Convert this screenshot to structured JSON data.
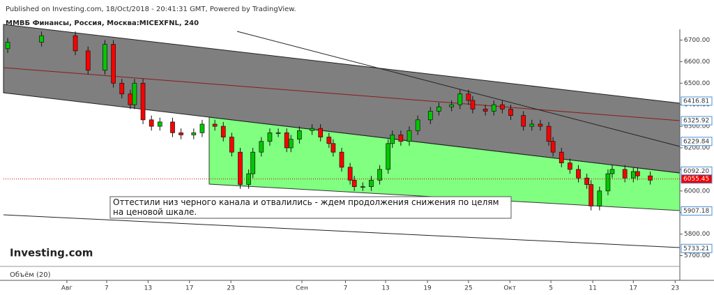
{
  "header": "Published on Investing.com, 18/Oct/2018 - 20:41:31 GMT, Powered by TradingView.",
  "chart_data": {
    "type": "candlestick",
    "title": "ММВБ Финансы, Россия, Москва:MICEXFNL, 240",
    "annotation": "Оттестили низ черного канала и отвалились - ждем продолжения снижения по целям на ценовой шкале.",
    "logo": "Investing.com",
    "volume_label": "Объём (20)",
    "up_color": "#00c800",
    "down_color": "#ff0000",
    "x": [
      1,
      9,
      17,
      20,
      24,
      26,
      28,
      30,
      31,
      33,
      35,
      37,
      40,
      42,
      45,
      47,
      50,
      52,
      54,
      56,
      58,
      59,
      61,
      63,
      65,
      67,
      68,
      70,
      73,
      75,
      77,
      78,
      80,
      82,
      83,
      85,
      87,
      89,
      91,
      92,
      94,
      96,
      98,
      101,
      103,
      106,
      108,
      110,
      111,
      114,
      116,
      118,
      120,
      123,
      125,
      127,
      129,
      130,
      132,
      134,
      136,
      138,
      139,
      141,
      143,
      144,
      147,
      149,
      150,
      153
    ],
    "open": [
      6660,
      6690,
      6720,
      6650,
      6560,
      6680,
      6500,
      6450,
      6400,
      6500,
      6330,
      6300,
      6320,
      6270,
      6260,
      6270,
      6310,
      6300,
      6250,
      6180,
      6030,
      6080,
      6180,
      6230,
      6270,
      6270,
      6200,
      6240,
      6280,
      6290,
      6250,
      6220,
      6180,
      6110,
      6050,
      6020,
      6020,
      6050,
      6100,
      6220,
      6260,
      6230,
      6280,
      6330,
      6370,
      6390,
      6400,
      6450,
      6420,
      6380,
      6370,
      6400,
      6380,
      6350,
      6300,
      6310,
      6300,
      6230,
      6180,
      6130,
      6100,
      6060,
      6030,
      5930,
      6000,
      6080,
      6100,
      6060,
      6090,
      6070
    ],
    "high": [
      6710,
      6740,
      6740,
      6670,
      6700,
      6700,
      6520,
      6470,
      6520,
      6520,
      6350,
      6340,
      6340,
      6290,
      6290,
      6330,
      6330,
      6320,
      6270,
      6200,
      6100,
      6200,
      6250,
      6290,
      6290,
      6290,
      6260,
      6300,
      6310,
      6310,
      6270,
      6240,
      6200,
      6130,
      6070,
      6040,
      6070,
      6120,
      6240,
      6280,
      6280,
      6300,
      6350,
      6390,
      6410,
      6420,
      6470,
      6470,
      6440,
      6400,
      6420,
      6420,
      6400,
      6370,
      6330,
      6330,
      6320,
      6250,
      6200,
      6150,
      6120,
      6080,
      6050,
      6020,
      6100,
      6120,
      6120,
      6110,
      6110,
      6090
    ],
    "low": [
      6640,
      6670,
      6630,
      6540,
      6540,
      6480,
      6430,
      6380,
      6380,
      6310,
      6280,
      6280,
      6250,
      6240,
      6240,
      6250,
      6280,
      6230,
      6160,
      6010,
      6010,
      6060,
      6160,
      6210,
      6250,
      6180,
      6180,
      6220,
      6260,
      6230,
      6200,
      6160,
      6090,
      6030,
      6000,
      6000,
      6000,
      6030,
      6080,
      6200,
      6210,
      6210,
      6260,
      6310,
      6350,
      6370,
      6380,
      6400,
      6360,
      6350,
      6350,
      6360,
      6330,
      6280,
      6280,
      6280,
      6210,
      6160,
      6110,
      6080,
      6040,
      6010,
      5910,
      5910,
      5980,
      6060,
      6040,
      6040,
      6050,
      6030
    ],
    "close": [
      6690,
      6720,
      6650,
      6560,
      6680,
      6500,
      6450,
      6400,
      6500,
      6330,
      6300,
      6320,
      6270,
      6260,
      6270,
      6310,
      6300,
      6250,
      6180,
      6030,
      6080,
      6180,
      6230,
      6270,
      6270,
      6200,
      6240,
      6280,
      6290,
      6250,
      6220,
      6180,
      6110,
      6050,
      6020,
      6020,
      6050,
      6100,
      6220,
      6260,
      6230,
      6280,
      6330,
      6370,
      6390,
      6400,
      6450,
      6420,
      6380,
      6370,
      6400,
      6380,
      6350,
      6300,
      6310,
      6300,
      6230,
      6180,
      6130,
      6100,
      6060,
      6030,
      5930,
      6000,
      6080,
      6100,
      6060,
      6090,
      6070,
      6050
    ],
    "xlim": [
      0,
      160
    ],
    "ylim": [
      6750,
      5650
    ],
    "yticks": [
      {
        "value": 6700,
        "label": "6700.00"
      },
      {
        "value": 6600,
        "label": "6600.00"
      },
      {
        "value": 6500,
        "label": "6500.00"
      },
      {
        "value": 6400,
        "label": "6400.00"
      },
      {
        "value": 6300,
        "label": "6300.00"
      },
      {
        "value": 6200,
        "label": "6200.00"
      },
      {
        "value": 6100,
        "label": "6100.00"
      },
      {
        "value": 6000,
        "label": "6000.00"
      },
      {
        "value": 5900,
        "label": "5900.00"
      },
      {
        "value": 5800,
        "label": "5800.00"
      },
      {
        "value": 5700,
        "label": "5700.00"
      }
    ],
    "xticks": [
      {
        "value": 15,
        "label": "Авг"
      },
      {
        "value": 24.4,
        "label": "7"
      },
      {
        "value": 34.2,
        "label": "13"
      },
      {
        "value": 44,
        "label": "17"
      },
      {
        "value": 53.8,
        "label": "23"
      },
      {
        "value": 70.6,
        "label": "Сен"
      },
      {
        "value": 80.9,
        "label": "7"
      },
      {
        "value": 90.4,
        "label": "13"
      },
      {
        "value": 100.3,
        "label": "19"
      },
      {
        "value": 110,
        "label": "25"
      },
      {
        "value": 119.8,
        "label": "Окт"
      },
      {
        "value": 129.5,
        "label": "5"
      },
      {
        "value": 139.4,
        "label": "11"
      },
      {
        "value": 149,
        "label": "17"
      },
      {
        "value": 158.9,
        "label": "23"
      }
    ],
    "levels": [
      6416.81,
      6325.92,
      6229.84,
      {
        "value": 6092.2,
        "label": "6092.20"
      },
      6055.45,
      5907.18,
      5733.21
    ],
    "current_level_index": 4
  }
}
